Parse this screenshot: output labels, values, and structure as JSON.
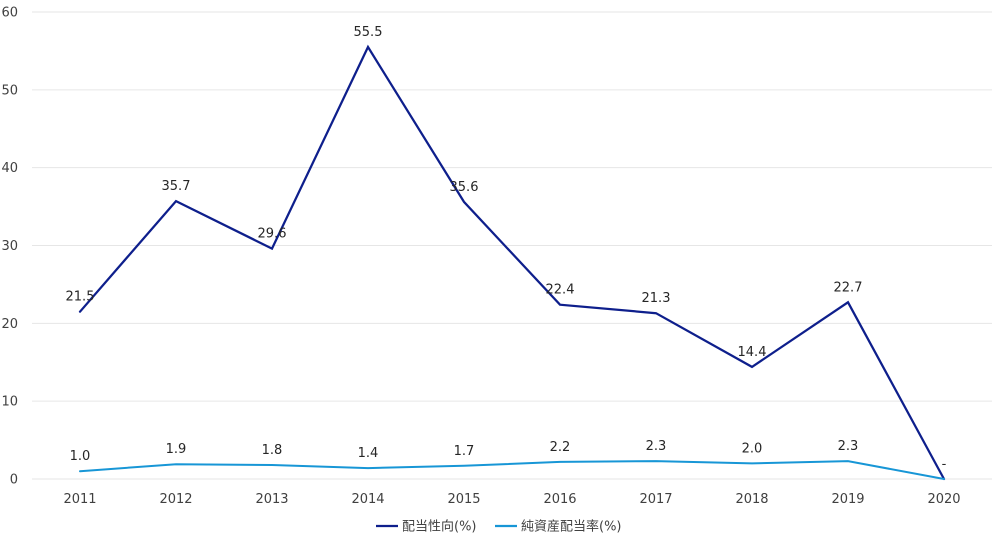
{
  "chart_data": {
    "type": "line",
    "categories": [
      "2011",
      "2012",
      "2013",
      "2014",
      "2015",
      "2016",
      "2017",
      "2018",
      "2019",
      "2020"
    ],
    "ylim": [
      0,
      60
    ],
    "yticks": [
      0,
      10,
      20,
      30,
      40,
      50,
      60
    ],
    "grid": true,
    "legend_position": "bottom",
    "series": [
      {
        "name": "配当性向(%)",
        "color": "#0e1f8c",
        "values": [
          21.5,
          35.7,
          29.6,
          55.5,
          35.6,
          22.4,
          21.3,
          14.4,
          22.7,
          0
        ],
        "labels": [
          "21.5",
          "35.7",
          "29.6",
          "55.5",
          "35.6",
          "22.4",
          "21.3",
          "14.4",
          "22.7",
          "-"
        ]
      },
      {
        "name": "純資産配当率(%)",
        "color": "#1796d6",
        "values": [
          1.0,
          1.9,
          1.8,
          1.4,
          1.7,
          2.2,
          2.3,
          2.0,
          2.3,
          0
        ],
        "labels": [
          "1.0",
          "1.9",
          "1.8",
          "1.4",
          "1.7",
          "2.2",
          "2.3",
          "2.0",
          "2.3",
          ""
        ]
      }
    ]
  }
}
